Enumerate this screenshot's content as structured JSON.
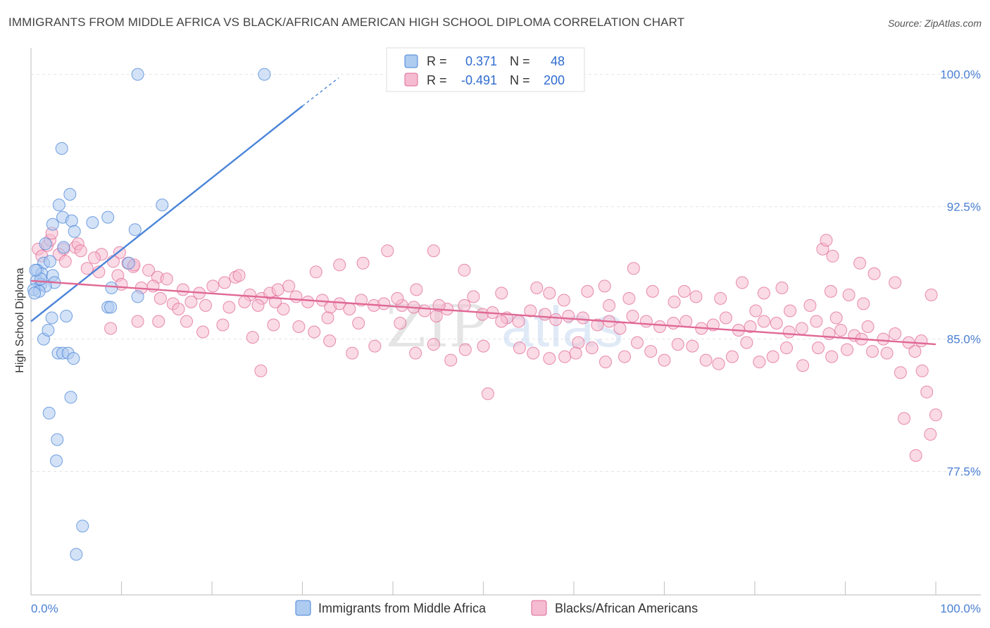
{
  "title": "IMMIGRANTS FROM MIDDLE AFRICA VS BLACK/AFRICAN AMERICAN HIGH SCHOOL DIPLOMA CORRELATION CHART",
  "source": "Source: ZipAtlas.com",
  "watermark": {
    "part1": "ZIP",
    "part2": "atlas"
  },
  "colors": {
    "blue": "#4a84d8",
    "blue_fill": "#aecbf0",
    "pink": "#e06894",
    "pink_fill": "#f5bbd0",
    "tick": "#4a7fd4"
  },
  "stats": {
    "r_label": "R =",
    "n_label": "N =",
    "rows": [
      {
        "r": "0.371",
        "n": "48"
      },
      {
        "r": "-0.491",
        "n": "200"
      }
    ]
  },
  "chart_data": {
    "type": "scatter",
    "title": "IMMIGRANTS FROM MIDDLE AFRICA VS BLACK/AFRICAN AMERICAN HIGH SCHOOL DIPLOMA CORRELATION CHART",
    "xlabel": "",
    "ylabel": "High School Diploma",
    "xlim": [
      0,
      100
    ],
    "ylim": [
      70.5,
      101.5
    ],
    "x_tick_labels": [
      "0.0%",
      "100.0%"
    ],
    "y_ticks": [
      {
        "value": 100.0,
        "label": "100.0%"
      },
      {
        "value": 92.5,
        "label": "92.5%"
      },
      {
        "value": 85.0,
        "label": "85.0%"
      },
      {
        "value": 77.5,
        "label": "77.5%"
      }
    ],
    "series": [
      {
        "name": "Immigrants from Middle Africa",
        "color": "#4a84d8",
        "trend": {
          "x0": 0,
          "y0": 86.0,
          "x1": 30,
          "y1": 98.2,
          "dash_to_x": 34,
          "dash_to_y": 99.8
        },
        "points": [
          [
            11.8,
            100.0
          ],
          [
            25.8,
            100.0
          ],
          [
            3.4,
            95.8
          ],
          [
            4.3,
            93.2
          ],
          [
            3.1,
            92.6
          ],
          [
            14.5,
            92.6
          ],
          [
            3.5,
            91.9
          ],
          [
            4.5,
            91.7
          ],
          [
            6.8,
            91.6
          ],
          [
            8.5,
            91.9
          ],
          [
            2.4,
            91.5
          ],
          [
            11.5,
            91.2
          ],
          [
            4.8,
            91.1
          ],
          [
            1.6,
            90.4
          ],
          [
            3.6,
            90.2
          ],
          [
            1.4,
            89.3
          ],
          [
            2.1,
            89.4
          ],
          [
            0.7,
            88.9
          ],
          [
            1.2,
            88.7
          ],
          [
            2.4,
            88.6
          ],
          [
            2.6,
            88.2
          ],
          [
            0.6,
            88.3
          ],
          [
            1.1,
            88.1
          ],
          [
            1.6,
            88.0
          ],
          [
            0.3,
            87.8
          ],
          [
            0.9,
            87.7
          ],
          [
            0.4,
            87.6
          ],
          [
            8.9,
            87.9
          ],
          [
            11.8,
            87.4
          ],
          [
            10.8,
            89.3
          ],
          [
            8.5,
            86.8
          ],
          [
            8.8,
            86.8
          ],
          [
            2.3,
            86.2
          ],
          [
            3.9,
            86.3
          ],
          [
            1.4,
            85.0
          ],
          [
            1.9,
            85.5
          ],
          [
            3.0,
            84.2
          ],
          [
            3.5,
            84.2
          ],
          [
            4.1,
            84.2
          ],
          [
            4.7,
            83.9
          ],
          [
            4.4,
            81.7
          ],
          [
            2.0,
            80.8
          ],
          [
            2.9,
            79.3
          ],
          [
            2.8,
            78.1
          ],
          [
            5.7,
            74.4
          ],
          [
            5.0,
            72.8
          ],
          [
            1.1,
            88.4
          ],
          [
            0.5,
            88.9
          ]
        ]
      },
      {
        "name": "Blacks/African Americans",
        "color": "#e06894",
        "trend": {
          "x0": 0,
          "y0": 88.3,
          "x1": 100,
          "y1": 84.7
        },
        "points": [
          [
            0.8,
            90.1
          ],
          [
            1.8,
            90.3
          ],
          [
            2.1,
            90.6
          ],
          [
            2.3,
            91.0
          ],
          [
            1.2,
            89.7
          ],
          [
            3.6,
            90.1
          ],
          [
            4.9,
            90.2
          ],
          [
            5.2,
            90.4
          ],
          [
            3.1,
            89.8
          ],
          [
            3.8,
            89.4
          ],
          [
            5.5,
            90.0
          ],
          [
            7.8,
            89.8
          ],
          [
            9.8,
            89.9
          ],
          [
            7.0,
            89.6
          ],
          [
            9.1,
            89.4
          ],
          [
            10.7,
            89.3
          ],
          [
            11.3,
            89.1
          ],
          [
            6.2,
            89.0
          ],
          [
            7.5,
            88.8
          ],
          [
            13.0,
            88.9
          ],
          [
            14.0,
            88.5
          ],
          [
            15.0,
            88.4
          ],
          [
            9.6,
            88.6
          ],
          [
            11.4,
            89.2
          ],
          [
            10.0,
            88.1
          ],
          [
            12.2,
            87.9
          ],
          [
            13.5,
            88.0
          ],
          [
            16.8,
            87.8
          ],
          [
            18.6,
            87.6
          ],
          [
            20.1,
            88.0
          ],
          [
            21.4,
            88.2
          ],
          [
            22.6,
            88.5
          ],
          [
            23.0,
            88.6
          ],
          [
            24.2,
            87.5
          ],
          [
            25.5,
            87.3
          ],
          [
            26.4,
            87.6
          ],
          [
            27.3,
            87.8
          ],
          [
            28.5,
            88.0
          ],
          [
            29.3,
            87.4
          ],
          [
            14.3,
            87.3
          ],
          [
            15.7,
            87.0
          ],
          [
            16.3,
            86.7
          ],
          [
            17.7,
            87.1
          ],
          [
            19.3,
            86.9
          ],
          [
            21.9,
            86.8
          ],
          [
            23.6,
            87.1
          ],
          [
            25.1,
            86.9
          ],
          [
            27.9,
            86.7
          ],
          [
            30.6,
            87.1
          ],
          [
            32.2,
            87.2
          ],
          [
            33.1,
            86.8
          ],
          [
            34.1,
            87.0
          ],
          [
            35.2,
            86.7
          ],
          [
            36.5,
            87.2
          ],
          [
            37.9,
            86.9
          ],
          [
            39.0,
            87.0
          ],
          [
            41.0,
            86.9
          ],
          [
            42.3,
            86.8
          ],
          [
            43.5,
            86.6
          ],
          [
            44.8,
            86.3
          ],
          [
            46.0,
            86.7
          ],
          [
            47.9,
            86.9
          ],
          [
            49.9,
            86.4
          ],
          [
            51.0,
            86.5
          ],
          [
            52.6,
            86.2
          ],
          [
            53.9,
            86.0
          ],
          [
            55.2,
            86.6
          ],
          [
            56.8,
            86.4
          ],
          [
            58.0,
            86.1
          ],
          [
            59.4,
            86.3
          ],
          [
            61.0,
            86.2
          ],
          [
            62.6,
            85.8
          ],
          [
            63.9,
            86.0
          ],
          [
            65.1,
            85.6
          ],
          [
            66.5,
            86.3
          ],
          [
            68.0,
            86.0
          ],
          [
            69.5,
            85.7
          ],
          [
            71.0,
            85.9
          ],
          [
            72.4,
            86.0
          ],
          [
            74.1,
            85.6
          ],
          [
            75.4,
            85.8
          ],
          [
            76.8,
            86.2
          ],
          [
            78.2,
            85.5
          ],
          [
            79.5,
            85.7
          ],
          [
            81.0,
            86.0
          ],
          [
            82.4,
            85.9
          ],
          [
            83.8,
            85.4
          ],
          [
            85.2,
            85.6
          ],
          [
            86.8,
            86.0
          ],
          [
            88.2,
            85.3
          ],
          [
            89.5,
            85.5
          ],
          [
            91.0,
            85.2
          ],
          [
            92.5,
            85.7
          ],
          [
            94.2,
            85.0
          ],
          [
            95.5,
            85.3
          ],
          [
            97.0,
            84.8
          ],
          [
            98.4,
            84.9
          ],
          [
            8.8,
            85.6
          ],
          [
            11.8,
            86.0
          ],
          [
            14.1,
            86.0
          ],
          [
            17.2,
            86.0
          ],
          [
            19.0,
            85.4
          ],
          [
            21.2,
            85.8
          ],
          [
            24.5,
            85.1
          ],
          [
            26.8,
            85.8
          ],
          [
            29.6,
            85.7
          ],
          [
            31.3,
            85.4
          ],
          [
            33.0,
            84.9
          ],
          [
            35.5,
            84.2
          ],
          [
            36.2,
            85.9
          ],
          [
            38.0,
            84.6
          ],
          [
            40.8,
            85.9
          ],
          [
            42.5,
            84.2
          ],
          [
            44.5,
            84.7
          ],
          [
            46.4,
            83.8
          ],
          [
            48.0,
            84.4
          ],
          [
            50.0,
            84.6
          ],
          [
            52.0,
            86.0
          ],
          [
            54.0,
            84.5
          ],
          [
            55.5,
            84.2
          ],
          [
            57.3,
            83.9
          ],
          [
            59.0,
            84.0
          ],
          [
            60.5,
            84.8
          ],
          [
            62.0,
            84.5
          ],
          [
            63.5,
            83.7
          ],
          [
            65.6,
            84.0
          ],
          [
            67.0,
            84.8
          ],
          [
            68.5,
            84.3
          ],
          [
            70.0,
            83.8
          ],
          [
            71.5,
            84.7
          ],
          [
            73.1,
            84.6
          ],
          [
            74.6,
            83.8
          ],
          [
            76.0,
            83.6
          ],
          [
            77.5,
            84.0
          ],
          [
            79.1,
            84.8
          ],
          [
            80.5,
            83.7
          ],
          [
            82.0,
            84.0
          ],
          [
            83.5,
            84.5
          ],
          [
            85.3,
            83.5
          ],
          [
            87.0,
            84.5
          ],
          [
            88.5,
            84.0
          ],
          [
            90.2,
            84.4
          ],
          [
            91.8,
            85.0
          ],
          [
            93.0,
            84.3
          ],
          [
            94.6,
            84.2
          ],
          [
            96.1,
            83.1
          ],
          [
            97.7,
            84.3
          ],
          [
            98.5,
            83.2
          ],
          [
            99.0,
            82.0
          ],
          [
            99.4,
            79.6
          ],
          [
            97.8,
            78.4
          ],
          [
            96.5,
            80.5
          ],
          [
            100.0,
            80.7
          ],
          [
            50.5,
            81.9
          ],
          [
            25.4,
            83.2
          ],
          [
            31.5,
            88.8
          ],
          [
            47.9,
            88.9
          ],
          [
            39.4,
            90.0
          ],
          [
            44.5,
            90.0
          ],
          [
            34.1,
            89.2
          ],
          [
            36.7,
            89.3
          ],
          [
            42.6,
            87.8
          ],
          [
            45.1,
            86.9
          ],
          [
            48.9,
            87.4
          ],
          [
            52.0,
            87.6
          ],
          [
            55.9,
            87.9
          ],
          [
            58.9,
            87.2
          ],
          [
            61.5,
            87.7
          ],
          [
            63.4,
            88.0
          ],
          [
            66.1,
            87.3
          ],
          [
            68.7,
            87.7
          ],
          [
            71.1,
            87.1
          ],
          [
            73.5,
            87.4
          ],
          [
            76.2,
            87.3
          ],
          [
            78.6,
            88.2
          ],
          [
            81.0,
            87.6
          ],
          [
            83.0,
            87.9
          ],
          [
            86.1,
            86.9
          ],
          [
            88.4,
            87.7
          ],
          [
            90.4,
            87.5
          ],
          [
            92.0,
            87.0
          ],
          [
            95.5,
            88.2
          ],
          [
            99.5,
            87.5
          ],
          [
            87.5,
            90.1
          ],
          [
            87.9,
            90.6
          ],
          [
            88.6,
            89.7
          ],
          [
            91.6,
            89.3
          ],
          [
            93.2,
            88.7
          ],
          [
            89.0,
            86.2
          ],
          [
            63.9,
            86.9
          ],
          [
            57.3,
            87.6
          ],
          [
            72.2,
            87.7
          ],
          [
            80.1,
            86.6
          ],
          [
            83.9,
            86.6
          ],
          [
            60.2,
            84.2
          ],
          [
            66.6,
            89.0
          ],
          [
            40.5,
            87.3
          ],
          [
            27.0,
            87.1
          ],
          [
            32.8,
            86.2
          ]
        ]
      }
    ],
    "legend": [
      "Immigrants from Middle Africa",
      "Blacks/African Americans"
    ],
    "legend_position": "bottom-center",
    "stats_position": "top-center"
  }
}
